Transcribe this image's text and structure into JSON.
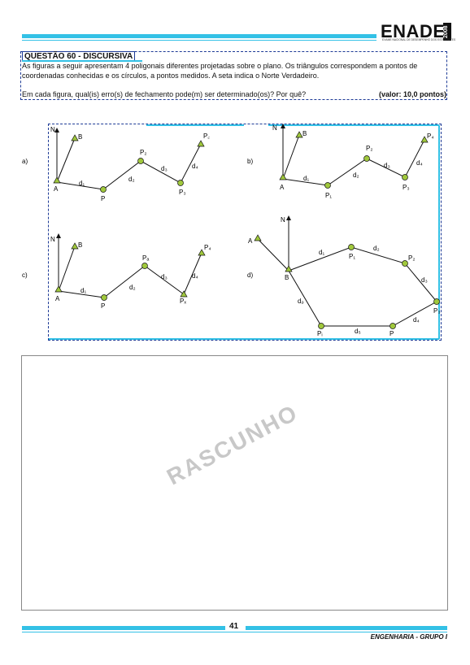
{
  "header": {
    "logo": "ENADE",
    "year": "2008",
    "subtitle": "EXAME NACIONAL DE DESEMPENHO DOS ESTUDANTES"
  },
  "question": {
    "title": "QUESTÃO  60 - DISCURSIVA",
    "lines": [
      "As figuras a seguir apresentam 4 poligonais diferentes projetadas sobre o plano. Os triângulos correspondem a pontos de",
      "coordenadas conhecidas e os círculos, a pontos medidos. A seta indica o Norte Verdadeiro."
    ],
    "prompt": "Em cada figura, qual(is) erro(s) de fechamento pode(m) ser determinado(os)? Por quê?",
    "value": "(valor: 10,0 pontos)"
  },
  "figures": {
    "a": {
      "tag": "a)",
      "north": "N",
      "A": "A",
      "B": "B",
      "P": "P",
      "P2": "P₂",
      "P3": "P₃",
      "Pc": "P꜀",
      "d1": "d₁",
      "d2": "d₂",
      "d3": "d₃",
      "d4": "d₄"
    },
    "b": {
      "tag": "b)",
      "north": "N",
      "A": "A",
      "B": "B",
      "P1": "P₁",
      "P2": "P₂",
      "P3": "P₃",
      "P4": "P₄",
      "d1": "d₁",
      "d2": "d₂",
      "d3": "d₃",
      "d4": "d₄"
    },
    "c": {
      "tag": "c)",
      "north": "N",
      "A": "A",
      "B": "B",
      "P": "P",
      "Pa": "Pₐ",
      "Pb": "Pₓ",
      "P4": "P₄",
      "d1": "d₁",
      "d2": "d₂",
      "d3": "d₃",
      "d4": "d₄"
    },
    "d": {
      "tag": "d)",
      "north": "N",
      "A": "A",
      "B": "B",
      "P1": "P₁",
      "P2": "P₂",
      "P3": "P₃",
      "Pi": "Pᵢ",
      "P": "P",
      "d1": "d₁",
      "d2": "d₂",
      "d3": "d₃",
      "d4": "d₄",
      "d5": "d₅",
      "d6": "dₔ"
    }
  },
  "draft": {
    "label": "RASCUNHO"
  },
  "footer": {
    "page": "41",
    "text": "ENGENHARIA - GRUPO I"
  }
}
